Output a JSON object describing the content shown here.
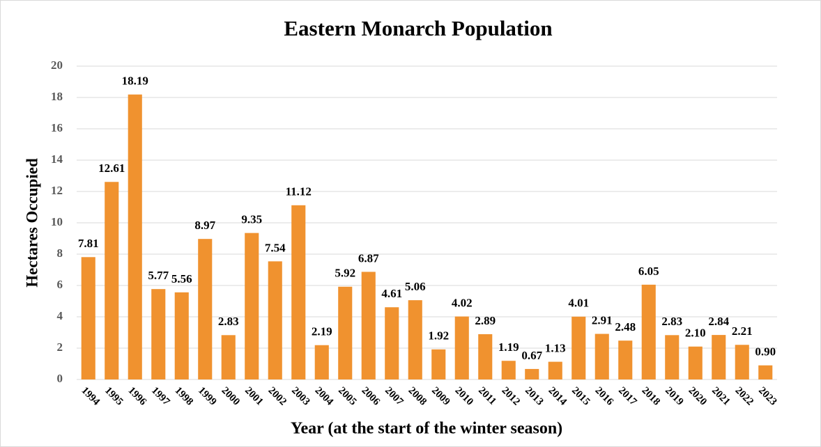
{
  "chart_data": {
    "type": "bar",
    "title": "Eastern Monarch Population",
    "x_label": "Year (at the start of the winter season)",
    "y_label": "Hectares Occupied",
    "categories": [
      "1994",
      "1995",
      "1996",
      "1997",
      "1998",
      "1999",
      "2000",
      "2001",
      "2002",
      "2003",
      "2004",
      "2005",
      "2006",
      "2007",
      "2008",
      "2009",
      "2010",
      "2011",
      "2012",
      "2013",
      "2014",
      "2015",
      "2016",
      "2017",
      "2018",
      "2019",
      "2020",
      "2021",
      "2022",
      "2023"
    ],
    "values": [
      7.81,
      12.61,
      18.19,
      5.77,
      5.56,
      8.97,
      2.83,
      9.35,
      7.54,
      11.12,
      2.19,
      5.92,
      6.87,
      4.61,
      5.06,
      1.92,
      4.02,
      2.89,
      1.19,
      0.67,
      1.13,
      4.01,
      2.91,
      2.48,
      6.05,
      2.83,
      2.1,
      2.84,
      2.21,
      0.9
    ],
    "value_labels": [
      "7.81",
      "12.61",
      "18.19",
      "5.77",
      "5.56",
      "8.97",
      "2.83",
      "9.35",
      "7.54",
      "11.12",
      "2.19",
      "5.92",
      "6.87",
      "4.61",
      "5.06",
      "1.92",
      "4.02",
      "2.89",
      "1.19",
      "0.67",
      "1.13",
      "4.01",
      "2.91",
      "2.48",
      "6.05",
      "2.83",
      "2.10",
      "2.84",
      "2.21",
      "0.90"
    ],
    "color": "#f0922f",
    "ylim": [
      0,
      20
    ],
    "yticks": [
      0,
      2,
      4,
      6,
      8,
      10,
      12,
      14,
      16,
      18,
      20
    ],
    "grid": true
  }
}
